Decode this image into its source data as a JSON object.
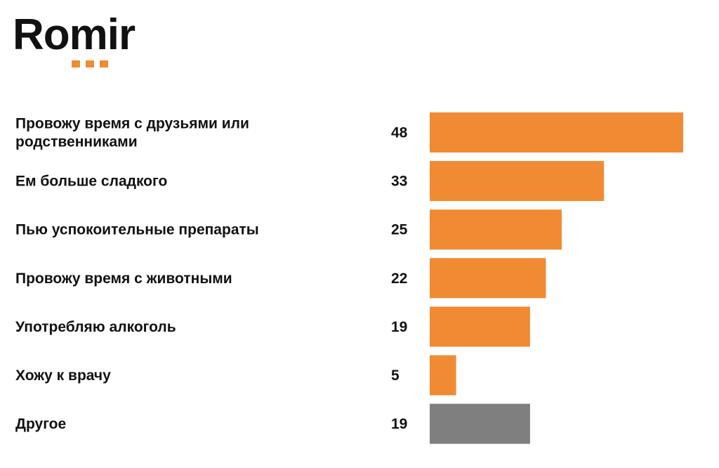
{
  "logo": {
    "text": "Romir",
    "dot_color": "#f08b33",
    "dot_count": 3
  },
  "colors": {
    "bar_main": "#f08b33",
    "bar_other": "#7f7f7f",
    "text": "#111111"
  },
  "chart_data": {
    "type": "bar",
    "orientation": "horizontal",
    "categories": [
      [
        "Провожу время с друзьями или",
        "родственниками"
      ],
      [
        "Ем больше сладкого"
      ],
      [
        "Пью успокоительные препараты"
      ],
      [
        "Провожу время с животными"
      ],
      [
        "Употребляю алкоголь"
      ],
      [
        "Хожу к врачу"
      ],
      [
        "Другое"
      ]
    ],
    "values": [
      48,
      33,
      25,
      22,
      19,
      5,
      19
    ],
    "bar_colors": [
      "#f08b33",
      "#f08b33",
      "#f08b33",
      "#f08b33",
      "#f08b33",
      "#f08b33",
      "#7f7f7f"
    ],
    "xlim": [
      0,
      48
    ],
    "grid": false,
    "legend": "none",
    "data_labels": true
  }
}
